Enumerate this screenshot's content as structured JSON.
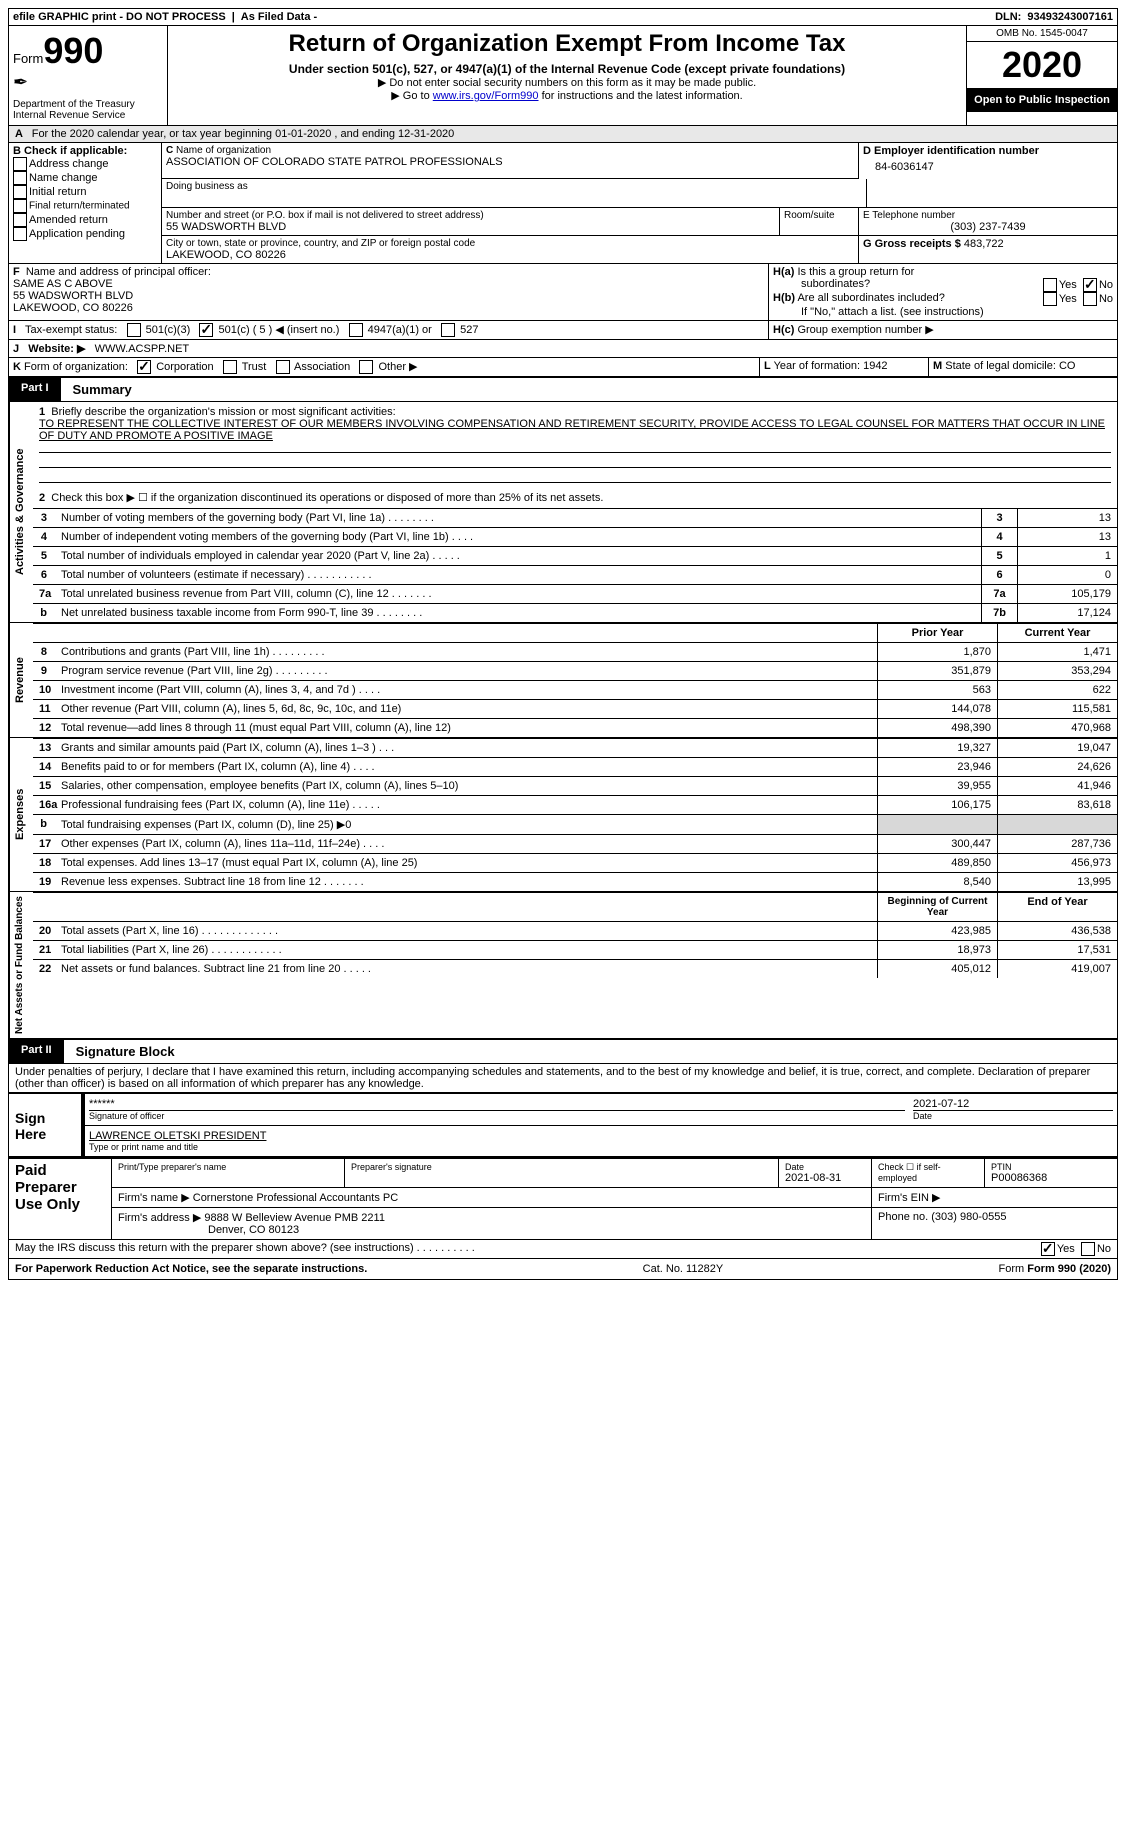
{
  "topband": {
    "efile": "efile GRAPHIC print - DO NOT PROCESS",
    "asfiled": "As Filed Data -",
    "dln_label": "DLN:",
    "dln": "93493243007161"
  },
  "header": {
    "form_prefix": "Form",
    "form_number": "990",
    "dept1": "Department of the Treasury",
    "dept2": "Internal Revenue Service",
    "title": "Return of Organization Exempt From Income Tax",
    "subtitle": "Under section 501(c), 527, or 4947(a)(1) of the Internal Revenue Code (except private foundations)",
    "line1": "▶ Do not enter social security numbers on this form as it may be made public.",
    "line2_pre": "▶ Go to ",
    "line2_link": "www.irs.gov/Form990",
    "line2_post": " for instructions and the latest information.",
    "omb_label": "OMB No. 1545-0047",
    "year": "2020",
    "open": "Open to Public Inspection"
  },
  "A": {
    "text": "For the 2020 calendar year, or tax year beginning 01-01-2020  , and ending 12-31-2020"
  },
  "B": {
    "title": "Check if applicable:",
    "items": [
      "Address change",
      "Name change",
      "Initial return",
      "Final return/terminated",
      "Amended return",
      "Application pending"
    ]
  },
  "C": {
    "name_label": "Name of organization",
    "name": "ASSOCIATION OF COLORADO STATE PATROL PROFESSIONALS",
    "dba_label": "Doing business as",
    "addr_label": "Number and street (or P.O. box if mail is not delivered to street address)",
    "room_label": "Room/suite",
    "addr": "55 WADSWORTH BLVD",
    "city_label": "City or town, state or province, country, and ZIP or foreign postal code",
    "city": "LAKEWOOD, CO  80226"
  },
  "D": {
    "label": "Employer identification number",
    "val": "84-6036147"
  },
  "E": {
    "label": "Telephone number",
    "val": "(303) 237-7439"
  },
  "G": {
    "label": "Gross receipts $",
    "val": "483,722"
  },
  "F": {
    "label": "Name and address of principal officer:",
    "l1": "SAME AS C ABOVE",
    "l2": "55 WADSWORTH BLVD",
    "l3": "LAKEWOOD, CO  80226"
  },
  "H": {
    "a1": "Is this a group return for",
    "a2": "subordinates?",
    "b": "Are all subordinates included?",
    "note": "If \"No,\" attach a list. (see instructions)",
    "c": "Group exemption number ▶",
    "yes": "Yes",
    "no": "No"
  },
  "I": {
    "label": "Tax-exempt status:",
    "opts": [
      "501(c)(3)",
      "501(c) ( 5 ) ◀ (insert no.)",
      "4947(a)(1) or",
      "527"
    ]
  },
  "J": {
    "label": "Website: ▶",
    "val": "WWW.ACSPP.NET"
  },
  "K": {
    "label": "Form of organization:",
    "opts": [
      "Corporation",
      "Trust",
      "Association",
      "Other ▶"
    ]
  },
  "L": {
    "label": "Year of formation:",
    "val": "1942"
  },
  "M": {
    "label": "State of legal domicile:",
    "val": "CO"
  },
  "part1": {
    "num": "Part I",
    "title": "Summary"
  },
  "gov": {
    "side": "Activities & Governance",
    "l1a": "Briefly describe the organization's mission or most significant activities:",
    "l1b": "TO REPRESENT THE COLLECTIVE INTEREST OF OUR MEMBERS INVOLVING COMPENSATION AND RETIREMENT SECURITY, PROVIDE ACCESS TO LEGAL COUNSEL FOR MATTERS THAT OCCUR IN LINE OF DUTY AND PROMOTE A POSITIVE IMAGE",
    "l2": "Check this box ▶ ☐ if the organization discontinued its operations or disposed of more than 25% of its net assets.",
    "lines": [
      {
        "n": "3",
        "t": "Number of voting members of the governing body (Part VI, line 1a)  .  .  .  .  .  .  .  .",
        "k": "3",
        "v": "13"
      },
      {
        "n": "4",
        "t": "Number of independent voting members of the governing body (Part VI, line 1b)  .  .  .  .",
        "k": "4",
        "v": "13"
      },
      {
        "n": "5",
        "t": "Total number of individuals employed in calendar year 2020 (Part V, line 2a)  .  .  .  .  .",
        "k": "5",
        "v": "1"
      },
      {
        "n": "6",
        "t": "Total number of volunteers (estimate if necessary)  .  .  .  .  .  .  .  .  .  .  .",
        "k": "6",
        "v": "0"
      },
      {
        "n": "7a",
        "t": "Total unrelated business revenue from Part VIII, column (C), line 12  .  .  .  .  .  .  .",
        "k": "7a",
        "v": "105,179"
      },
      {
        "n": "b",
        "t": "Net unrelated business taxable income from Form 990-T, line 39  .  .  .  .  .  .  .  .",
        "k": "7b",
        "v": "17,124"
      }
    ]
  },
  "fin": {
    "prior": "Prior Year",
    "curr": "Current Year",
    "rev_side": "Revenue",
    "exp_side": "Expenses",
    "net_side": "Net Assets or Fund Balances",
    "hdr_begin": "Beginning of Current Year",
    "hdr_end": "End of Year",
    "rows": [
      {
        "n": "8",
        "t": "Contributions and grants (Part VIII, line 1h)  .  .  .  .  .  .  .  .  .",
        "p": "1,870",
        "c": "1,471"
      },
      {
        "n": "9",
        "t": "Program service revenue (Part VIII, line 2g)  .  .  .  .  .  .  .  .  .",
        "p": "351,879",
        "c": "353,294"
      },
      {
        "n": "10",
        "t": "Investment income (Part VIII, column (A), lines 3, 4, and 7d )  .  .  .  .",
        "p": "563",
        "c": "622"
      },
      {
        "n": "11",
        "t": "Other revenue (Part VIII, column (A), lines 5, 6d, 8c, 9c, 10c, and 11e)",
        "p": "144,078",
        "c": "115,581"
      },
      {
        "n": "12",
        "t": "Total revenue—add lines 8 through 11 (must equal Part VIII, column (A), line 12)",
        "p": "498,390",
        "c": "470,968"
      }
    ],
    "exp": [
      {
        "n": "13",
        "t": "Grants and similar amounts paid (Part IX, column (A), lines 1–3 )  .  .  .",
        "p": "19,327",
        "c": "19,047"
      },
      {
        "n": "14",
        "t": "Benefits paid to or for members (Part IX, column (A), line 4)  .  .  .  .",
        "p": "23,946",
        "c": "24,626"
      },
      {
        "n": "15",
        "t": "Salaries, other compensation, employee benefits (Part IX, column (A), lines 5–10)",
        "p": "39,955",
        "c": "41,946"
      },
      {
        "n": "16a",
        "t": "Professional fundraising fees (Part IX, column (A), line 11e)  .  .  .  .  .",
        "p": "106,175",
        "c": "83,618"
      },
      {
        "n": "b",
        "t": "Total fundraising expenses (Part IX, column (D), line 25) ▶0",
        "p": "",
        "c": ""
      },
      {
        "n": "17",
        "t": "Other expenses (Part IX, column (A), lines 11a–11d, 11f–24e)  .  .  .  .",
        "p": "300,447",
        "c": "287,736"
      },
      {
        "n": "18",
        "t": "Total expenses. Add lines 13–17 (must equal Part IX, column (A), line 25)",
        "p": "489,850",
        "c": "456,973"
      },
      {
        "n": "19",
        "t": "Revenue less expenses. Subtract line 18 from line 12  .  .  .  .  .  .  .",
        "p": "8,540",
        "c": "13,995"
      }
    ],
    "net": [
      {
        "n": "20",
        "t": "Total assets (Part X, line 16)  .  .  .  .  .  .  .  .  .  .  .  .  .",
        "p": "423,985",
        "c": "436,538"
      },
      {
        "n": "21",
        "t": "Total liabilities (Part X, line 26)  .  .  .  .  .  .  .  .  .  .  .  .",
        "p": "18,973",
        "c": "17,531"
      },
      {
        "n": "22",
        "t": "Net assets or fund balances. Subtract line 21 from line 20  .  .  .  .  .",
        "p": "405,012",
        "c": "419,007"
      }
    ]
  },
  "part2": {
    "num": "Part II",
    "title": "Signature Block"
  },
  "sig": {
    "perjury": "Under penalties of perjury, I declare that I have examined this return, including accompanying schedules and statements, and to the best of my knowledge and belief, it is true, correct, and complete. Declaration of preparer (other than officer) is based on all information of which preparer has any knowledge.",
    "sign_here": "Sign Here",
    "stars": "******",
    "sig_label": "Signature of officer",
    "date": "2021-07-12",
    "date_label": "Date",
    "name": "LAWRENCE OLETSKI PRESIDENT",
    "name_label": "Type or print name and title",
    "paid": "Paid Preparer Use Only",
    "prep_name_label": "Print/Type preparer's name",
    "prep_sig_label": "Preparer's signature",
    "prep_date_label": "Date",
    "prep_date": "2021-08-31",
    "check_label": "Check ☐ if self-employed",
    "ptin_label": "PTIN",
    "ptin": "P00086368",
    "firm_name_label": "Firm's name   ▶",
    "firm_name": "Cornerstone Professional Accountants PC",
    "firm_ein_label": "Firm's EIN ▶",
    "firm_addr_label": "Firm's address ▶",
    "firm_addr1": "9888 W Belleview Avenue PMB 2211",
    "firm_addr2": "Denver, CO 80123",
    "phone_label": "Phone no.",
    "phone": "(303) 980-0555",
    "discuss": "May the IRS discuss this return with the preparer shown above? (see instructions)  .  .  .  .  .  .  .  .  .  .",
    "yes": "Yes",
    "no": "No"
  },
  "footer": {
    "left": "For Paperwork Reduction Act Notice, see the separate instructions.",
    "mid": "Cat. No. 11282Y",
    "right": "Form 990 (2020)"
  }
}
